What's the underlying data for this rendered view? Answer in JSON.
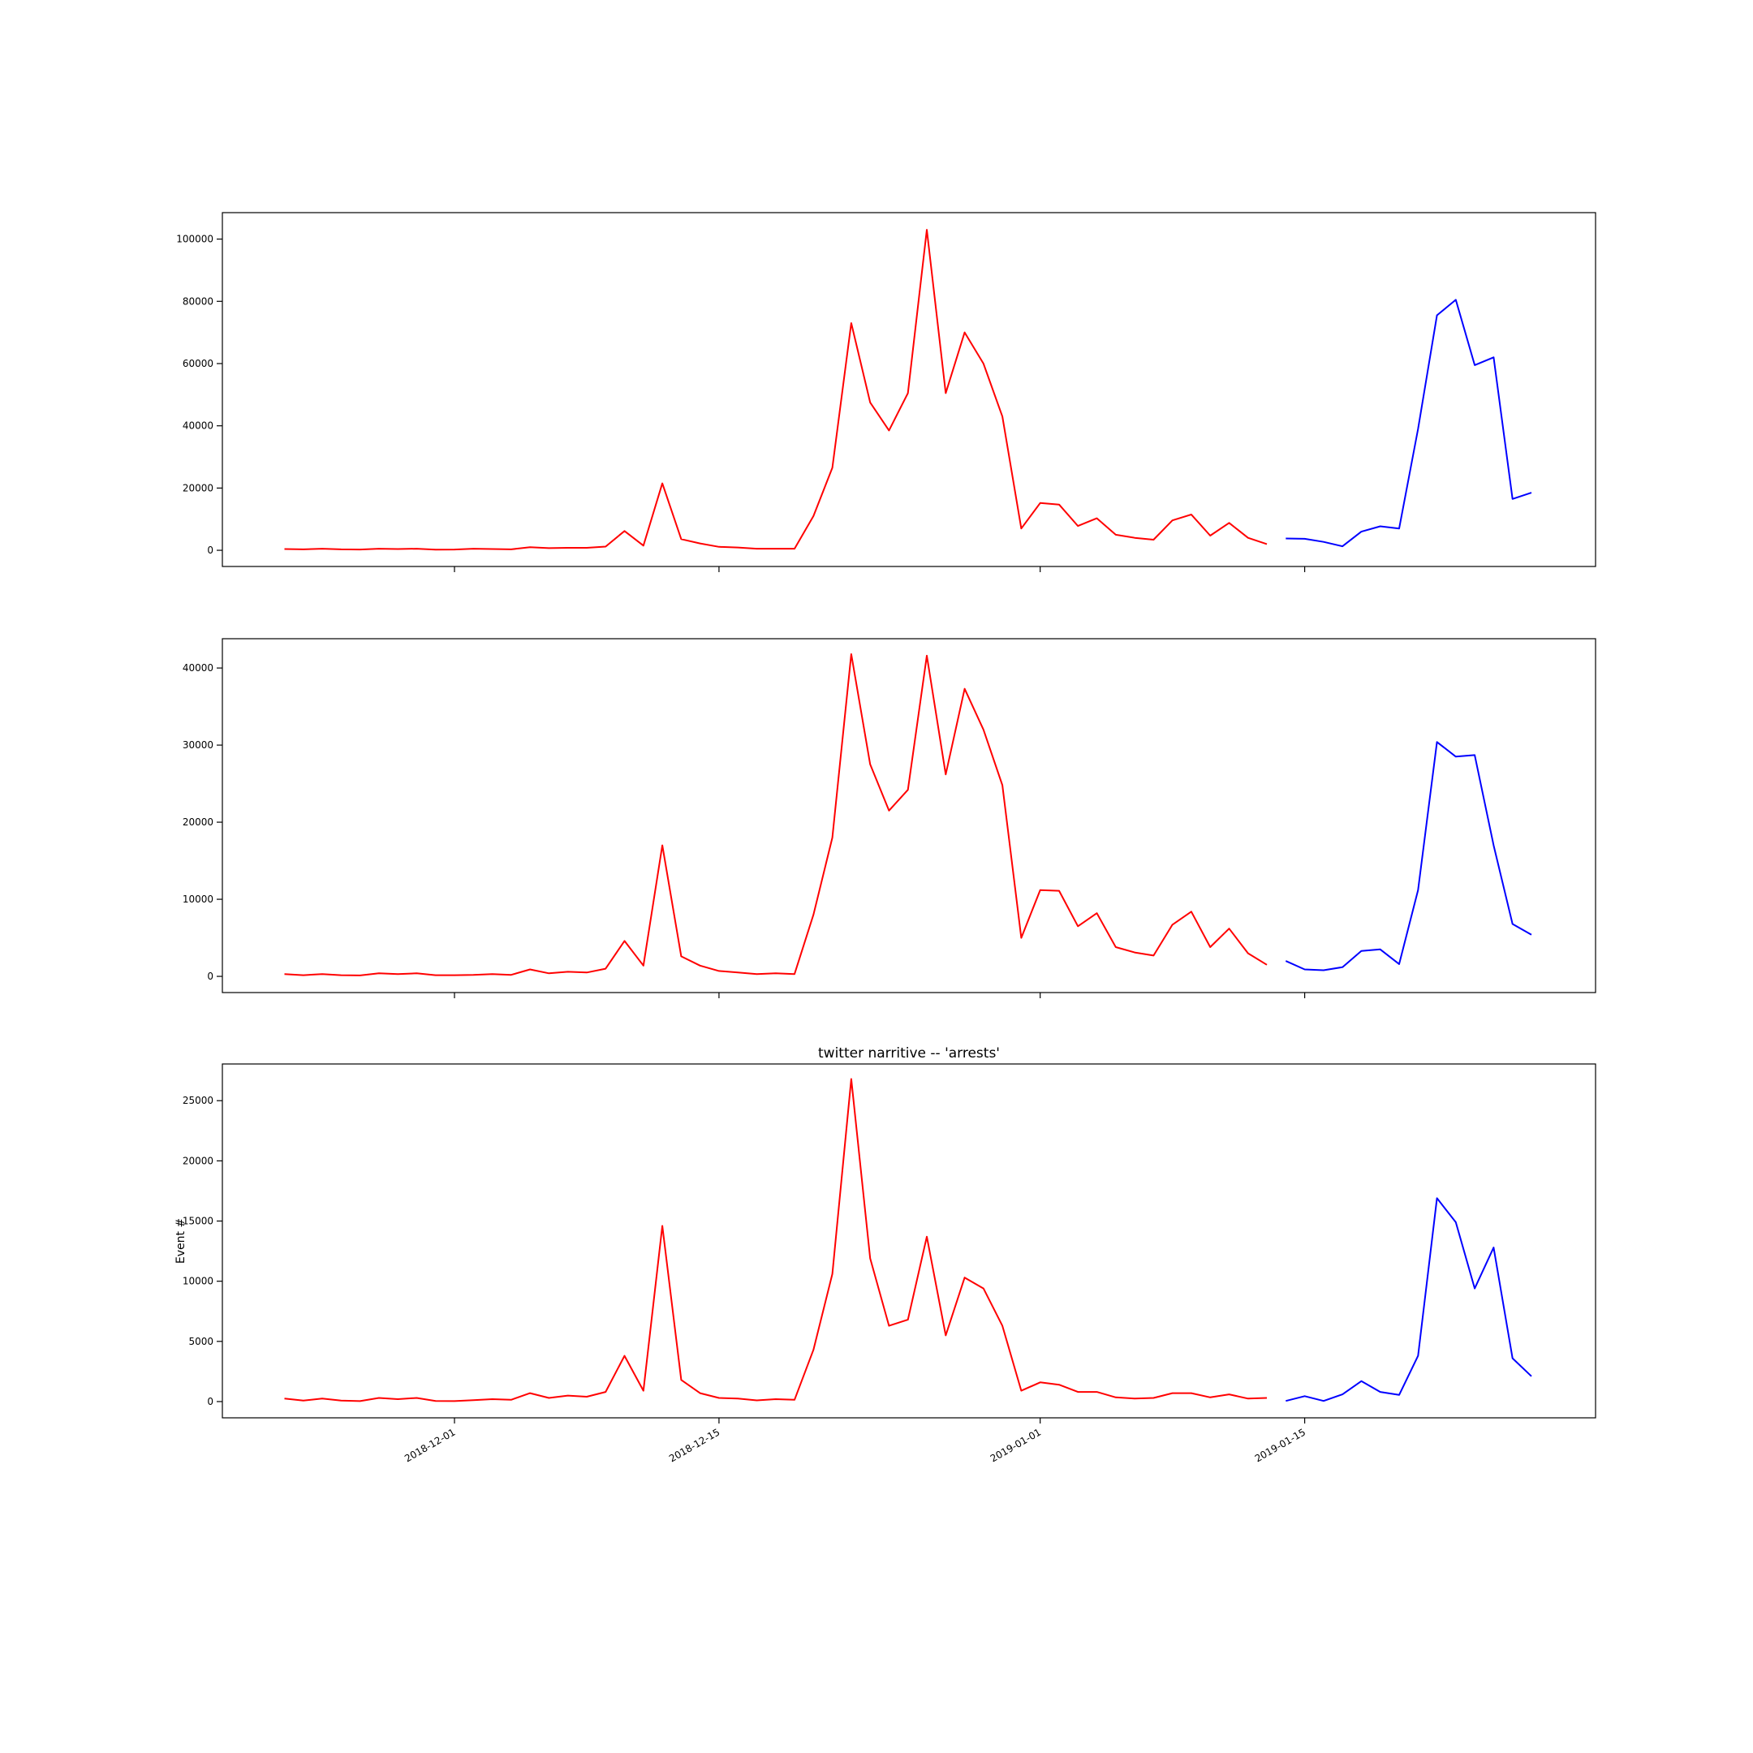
{
  "chart_data": [
    {
      "type": "line",
      "title": "",
      "xlabel": "",
      "ylabel": "",
      "x_tick_labels_visible": false,
      "y_ticks": [
        0,
        20000,
        40000,
        60000,
        80000,
        100000
      ],
      "y_tick_labels": [
        "0",
        "20000",
        "40000",
        "60000",
        "80000",
        "100000"
      ],
      "ylim": [
        -5200,
        108500
      ],
      "grid": false,
      "legend": "none",
      "series": [
        {
          "color": "#ff0000",
          "x_start": "2018-11-22",
          "values": [
            400,
            300,
            500,
            300,
            250,
            500,
            400,
            500,
            200,
            250,
            500,
            400,
            300,
            1000,
            700,
            800,
            800,
            1200,
            6200,
            1500,
            21500,
            3600,
            2200,
            1100,
            900,
            500,
            500,
            500,
            11000,
            26500,
            73000,
            47500,
            38500,
            50500,
            103000,
            50500,
            70000,
            60000,
            43000,
            7000,
            15200,
            14700,
            7800,
            10300,
            5000,
            4000,
            3400,
            9600,
            11500,
            4700,
            8800,
            4000,
            2000
          ]
        },
        {
          "color": "#0000ff",
          "x_start": "2019-01-14",
          "values": [
            3800,
            3700,
            2700,
            1300,
            6000,
            7700,
            7000,
            39000,
            75500,
            80500,
            59500,
            62000,
            16500,
            18500
          ]
        }
      ]
    },
    {
      "type": "line",
      "title": "",
      "xlabel": "",
      "ylabel": "",
      "x_tick_labels_visible": false,
      "y_ticks": [
        0,
        10000,
        20000,
        30000,
        40000
      ],
      "y_tick_labels": [
        "0",
        "10000",
        "20000",
        "30000",
        "40000"
      ],
      "ylim": [
        -2100,
        43800
      ],
      "grid": false,
      "legend": "none",
      "series": [
        {
          "color": "#ff0000",
          "x_start": "2018-11-22",
          "values": [
            300,
            150,
            300,
            150,
            120,
            400,
            300,
            400,
            150,
            150,
            200,
            300,
            200,
            900,
            400,
            600,
            500,
            1000,
            4600,
            1400,
            17000,
            2600,
            1400,
            700,
            500,
            300,
            400,
            300,
            8000,
            18000,
            41800,
            27500,
            21500,
            24200,
            41600,
            26200,
            37300,
            32000,
            24800,
            5000,
            11200,
            11100,
            6500,
            8200,
            3800,
            3100,
            2700,
            6700,
            8400,
            3800,
            6200,
            3000,
            1500
          ]
        },
        {
          "color": "#0000ff",
          "x_start": "2019-01-14",
          "values": [
            2000,
            900,
            800,
            1200,
            3300,
            3500,
            1600,
            11200,
            30400,
            28500,
            28700,
            17000,
            6800,
            5400
          ]
        }
      ]
    },
    {
      "type": "line",
      "title": "twitter narritive -- 'arrests'",
      "xlabel": "",
      "ylabel": "Event #",
      "x_tick_labels_visible": true,
      "x_ticks": [
        "2018-12-01",
        "2018-12-15",
        "2019-01-01",
        "2019-01-15"
      ],
      "x_tick_labels": [
        "2018-12-01",
        "2018-12-15",
        "2019-01-01",
        "2019-01-15"
      ],
      "y_ticks": [
        0,
        5000,
        10000,
        15000,
        20000,
        25000
      ],
      "y_tick_labels": [
        "0",
        "5000",
        "10000",
        "15000",
        "20000",
        "25000"
      ],
      "ylim": [
        -1350,
        28050
      ],
      "grid": false,
      "legend": "none",
      "series": [
        {
          "color": "#ff0000",
          "x_start": "2018-11-22",
          "values": [
            250,
            80,
            250,
            80,
            40,
            300,
            200,
            300,
            50,
            40,
            120,
            200,
            150,
            700,
            300,
            500,
            400,
            800,
            3800,
            900,
            14600,
            1800,
            700,
            300,
            250,
            100,
            200,
            150,
            4300,
            10600,
            26800,
            11900,
            6300,
            6800,
            13700,
            5500,
            10300,
            9400,
            6300,
            900,
            1600,
            1400,
            800,
            800,
            350,
            250,
            300,
            700,
            700,
            350,
            600,
            250,
            300
          ]
        },
        {
          "color": "#0000ff",
          "x_start": "2019-01-14",
          "values": [
            50,
            450,
            50,
            600,
            1700,
            800,
            550,
            3800,
            16900,
            14900,
            9400,
            12800,
            3600,
            2100
          ]
        }
      ]
    }
  ]
}
